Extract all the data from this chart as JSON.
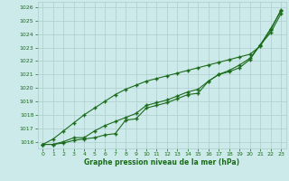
{
  "x": [
    0,
    1,
    2,
    3,
    4,
    5,
    6,
    7,
    8,
    9,
    10,
    11,
    12,
    13,
    14,
    15,
    16,
    17,
    18,
    19,
    20,
    21,
    22,
    23
  ],
  "series1": [
    1015.8,
    1015.8,
    1015.9,
    1016.1,
    1016.2,
    1016.3,
    1016.5,
    1016.6,
    1017.6,
    1017.7,
    1018.5,
    1018.7,
    1018.9,
    1019.2,
    1019.5,
    1019.6,
    1020.5,
    1021.0,
    1021.2,
    1021.5,
    1022.1,
    1023.2,
    1024.1,
    1025.5
  ],
  "series2": [
    1015.8,
    1015.8,
    1016.0,
    1016.3,
    1016.3,
    1016.8,
    1017.2,
    1017.5,
    1017.8,
    1018.1,
    1018.7,
    1018.9,
    1019.1,
    1019.4,
    1019.7,
    1019.9,
    1020.5,
    1021.0,
    1021.3,
    1021.7,
    1022.2,
    1023.2,
    1024.4,
    1025.7
  ],
  "series3": [
    1015.8,
    1016.2,
    1016.8,
    1017.4,
    1018.0,
    1018.5,
    1019.0,
    1019.5,
    1019.9,
    1020.2,
    1020.5,
    1020.7,
    1020.9,
    1021.1,
    1021.3,
    1021.5,
    1021.7,
    1021.9,
    1022.1,
    1022.3,
    1022.5,
    1023.1,
    1024.3,
    1025.8
  ],
  "ylim": [
    1015.5,
    1026.4
  ],
  "yticks": [
    1016,
    1017,
    1018,
    1019,
    1020,
    1021,
    1022,
    1023,
    1024,
    1025,
    1026
  ],
  "xlim": [
    -0.5,
    23.5
  ],
  "xticks": [
    0,
    1,
    2,
    3,
    4,
    5,
    6,
    7,
    8,
    9,
    10,
    11,
    12,
    13,
    14,
    15,
    16,
    17,
    18,
    19,
    20,
    21,
    22,
    23
  ],
  "xlabel": "Graphe pression niveau de la mer (hPa)",
  "line_color": "#1a6b1a",
  "bg_color": "#cdeaea",
  "grid_color": "#b0cccc",
  "marker": "+",
  "marker_size": 3.5,
  "linewidth": 0.8
}
